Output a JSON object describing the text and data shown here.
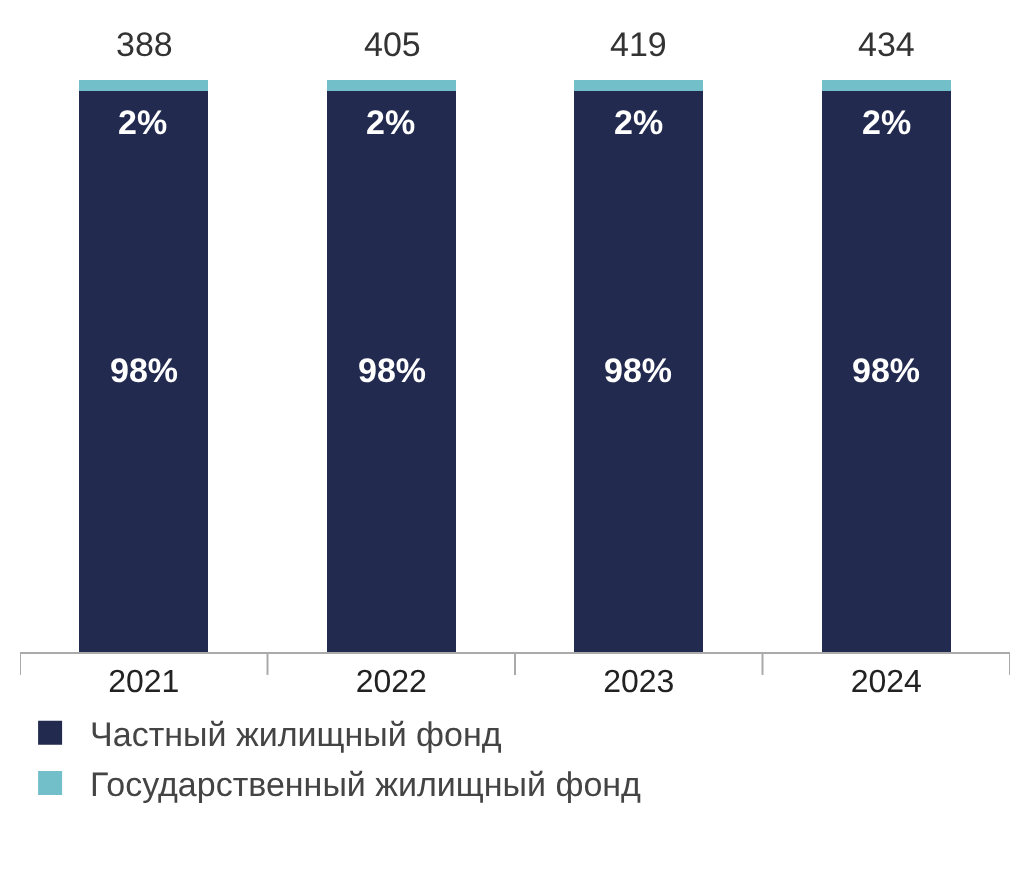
{
  "chart_data": {
    "type": "bar",
    "stacked": true,
    "categories": [
      "2021",
      "2022",
      "2023",
      "2024"
    ],
    "series": [
      {
        "name": "Частный жилищный фонд",
        "color": "#222a4f",
        "values": [
          98,
          98,
          98,
          98
        ],
        "value_labels": [
          "98%",
          "98%",
          "98%",
          "98%"
        ]
      },
      {
        "name": "Государственный жилищный фонд",
        "color": "#72bfca",
        "values": [
          2,
          2,
          2,
          2
        ],
        "value_labels": [
          "2%",
          "2%",
          "2%",
          "2%"
        ]
      }
    ],
    "annotations": [
      {
        "text": "388",
        "x": "2021",
        "y": 100
      },
      {
        "text": "405",
        "x": "2022",
        "y": 100
      },
      {
        "text": "419",
        "x": "2023",
        "y": 100
      },
      {
        "text": "434",
        "x": "2024",
        "y": 100
      }
    ],
    "legend": "bottom"
  }
}
